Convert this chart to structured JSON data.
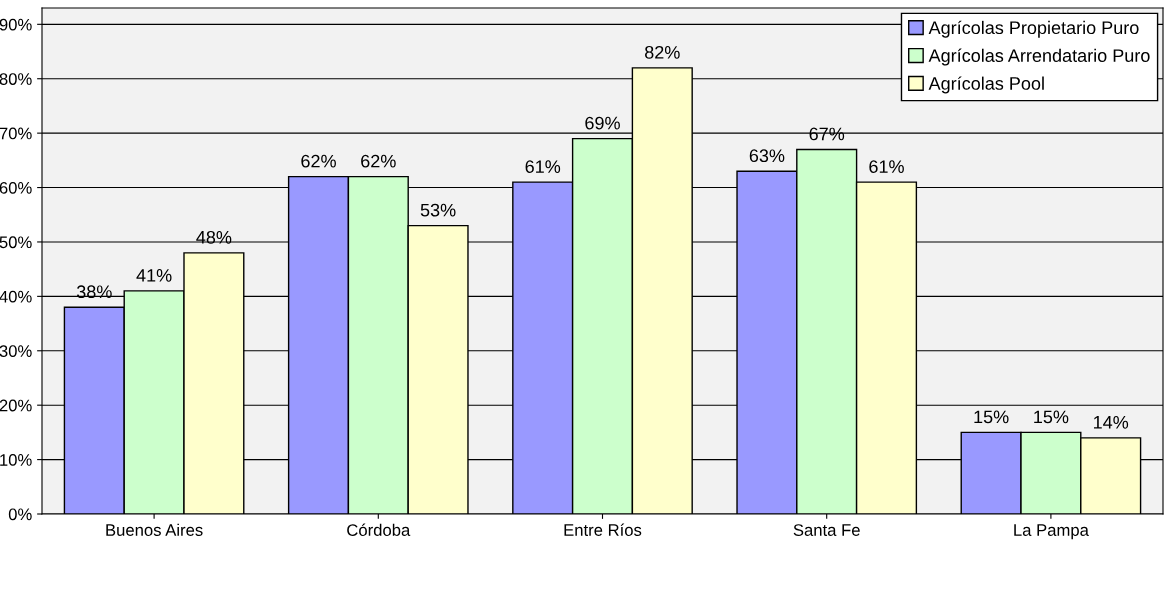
{
  "chart_data": {
    "type": "bar",
    "categories": [
      "Buenos Aires",
      "Córdoba",
      "Entre Ríos",
      "Santa Fe",
      "La Pampa"
    ],
    "series": [
      {
        "name": "Agrícolas Propietario Puro",
        "color": "#9999ff",
        "values": [
          38,
          62,
          61,
          63,
          15
        ]
      },
      {
        "name": "Agrícolas Arrendatario Puro",
        "color": "#ccffcc",
        "values": [
          41,
          62,
          69,
          67,
          15
        ]
      },
      {
        "name": "Agrícolas Pool",
        "color": "#ffffcc",
        "values": [
          48,
          53,
          82,
          61,
          14
        ]
      }
    ],
    "ylim": [
      0,
      93
    ],
    "yticks": [
      {
        "value": 0,
        "label": "0%"
      },
      {
        "value": 10,
        "label": "10%"
      },
      {
        "value": 20,
        "label": "20%"
      },
      {
        "value": 30,
        "label": "30%"
      },
      {
        "value": 40,
        "label": "40%"
      },
      {
        "value": 50,
        "label": "50%"
      },
      {
        "value": 60,
        "label": "60%"
      },
      {
        "value": 70,
        "label": "70%"
      },
      {
        "value": 80,
        "label": "80%"
      },
      {
        "value": 90,
        "label": "90%"
      }
    ],
    "value_labels": [
      [
        "38%",
        "62%",
        "61%",
        "63%",
        "15%"
      ],
      [
        "41%",
        "62%",
        "69%",
        "67%",
        "15%"
      ],
      [
        "48%",
        "53%",
        "82%",
        "61%",
        "14%"
      ]
    ],
    "grid": "y",
    "legend": "top right"
  }
}
